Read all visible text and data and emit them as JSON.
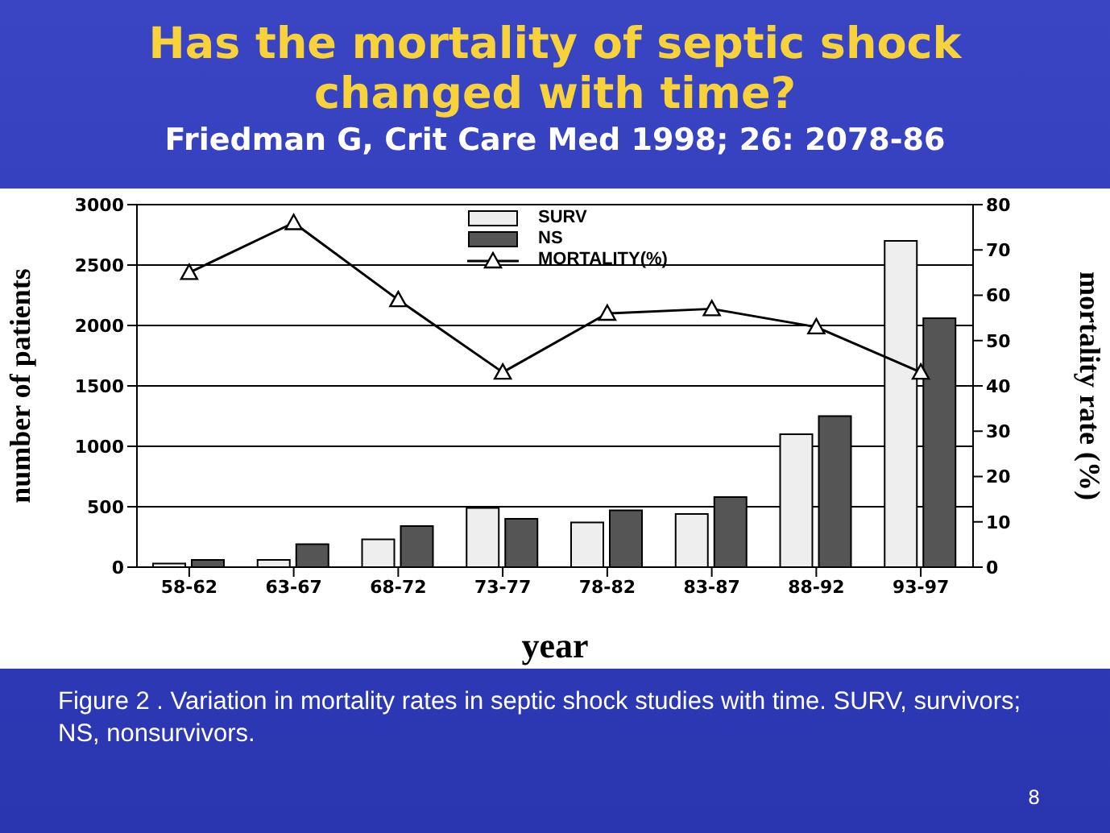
{
  "chart_data": {
    "type": "bar",
    "title": "Has the mortality of septic shock changed with time?",
    "subtitle": "Friedman G, Crit Care Med 1998; 26: 2078-86",
    "xlabel": "year",
    "ylabel": "number of patients",
    "y2label": "mortality rate (%)",
    "categories": [
      "58-62",
      "63-67",
      "68-72",
      "73-77",
      "78-82",
      "83-87",
      "88-92",
      "93-97"
    ],
    "series": [
      {
        "name": "SURV",
        "color": "#eeeeee",
        "values": [
          30,
          60,
          230,
          490,
          370,
          440,
          1100,
          2700
        ]
      },
      {
        "name": "NS",
        "color": "#555555",
        "values": [
          60,
          190,
          340,
          400,
          470,
          580,
          1250,
          2060
        ]
      },
      {
        "name": "MORTALITY(%)",
        "type": "line",
        "axis": "y2",
        "color": "#000000",
        "marker": "triangle",
        "values": [
          65,
          76,
          59,
          43,
          56,
          57,
          53,
          43
        ]
      }
    ],
    "ylim": [
      0,
      3000
    ],
    "yticks": [
      0,
      500,
      1000,
      1500,
      2000,
      2500,
      3000
    ],
    "y2lim": [
      0,
      80
    ],
    "y2ticks": [
      0,
      10,
      20,
      30,
      40,
      50,
      60,
      70,
      80
    ],
    "grid": "y",
    "legend": "top",
    "annotations": [
      "Figure 2 . Variation in mortality rates in septic shock studies with time. SURV, survivors; NS, nonsurvivors.",
      "8"
    ]
  }
}
